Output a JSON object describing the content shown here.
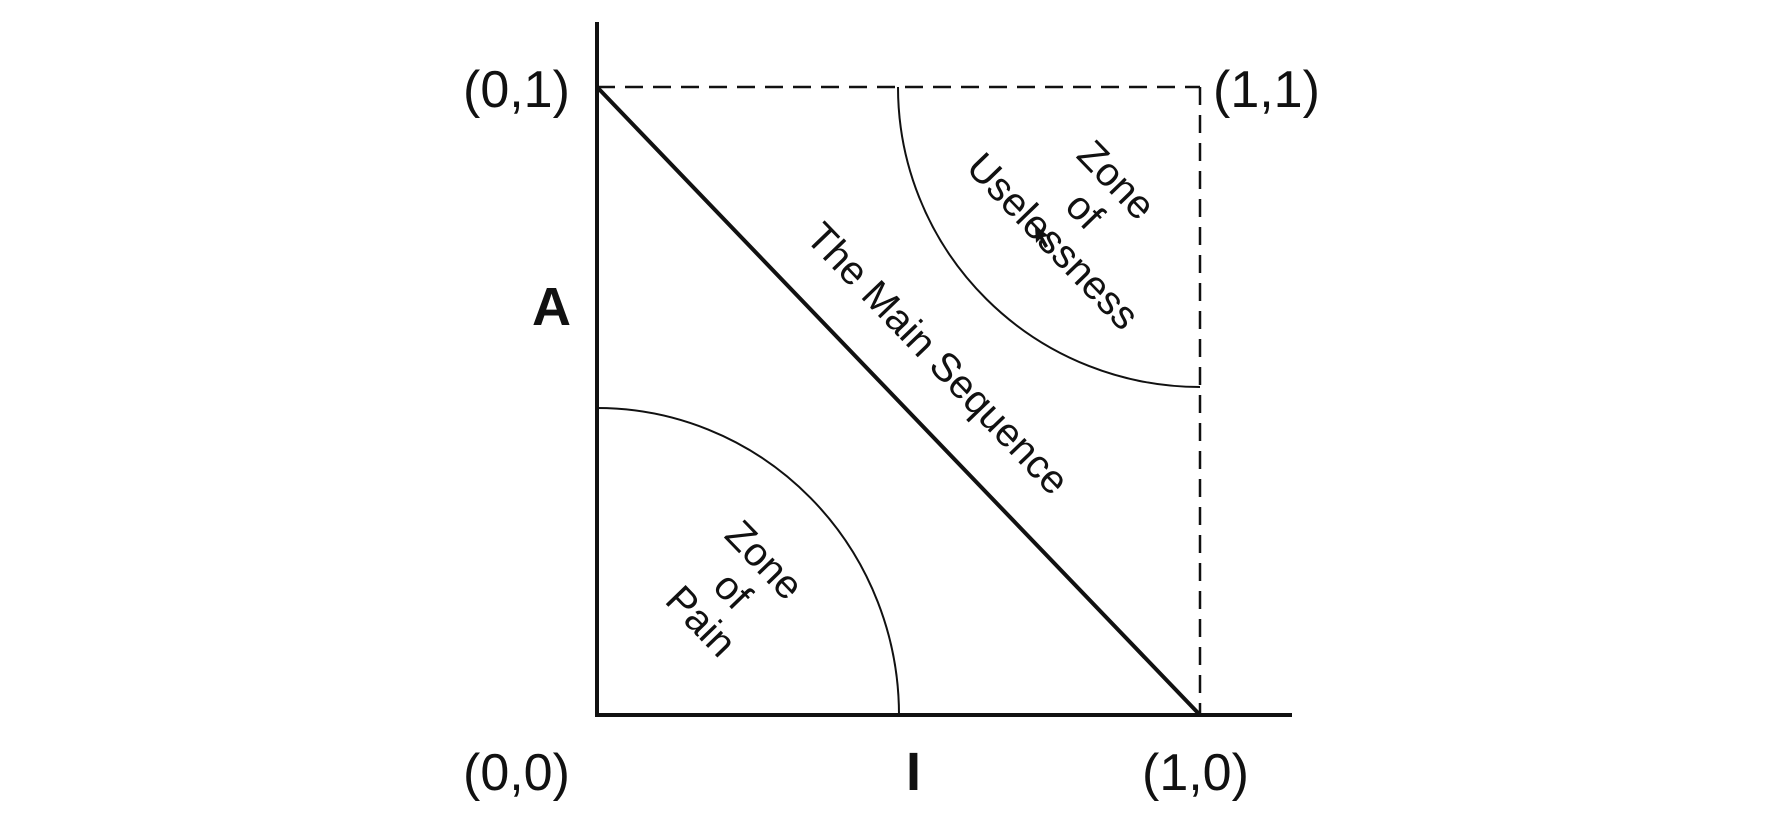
{
  "axes": {
    "y_label": "A",
    "x_label": "I"
  },
  "corners": {
    "top_left": "(0,1)",
    "top_right": "(1,1)",
    "bottom_left": "(0,0)",
    "bottom_right": "(1,0)"
  },
  "main_sequence": {
    "label": "The Main Sequence"
  },
  "zone_uselessness": {
    "line1": "Zone",
    "line2": "of",
    "line3": "Uselessness"
  },
  "zone_pain": {
    "line1": "Zone",
    "line2": "of",
    "line3": "Pain"
  },
  "colors": {
    "ink": "#111111",
    "background": "#ffffff"
  }
}
